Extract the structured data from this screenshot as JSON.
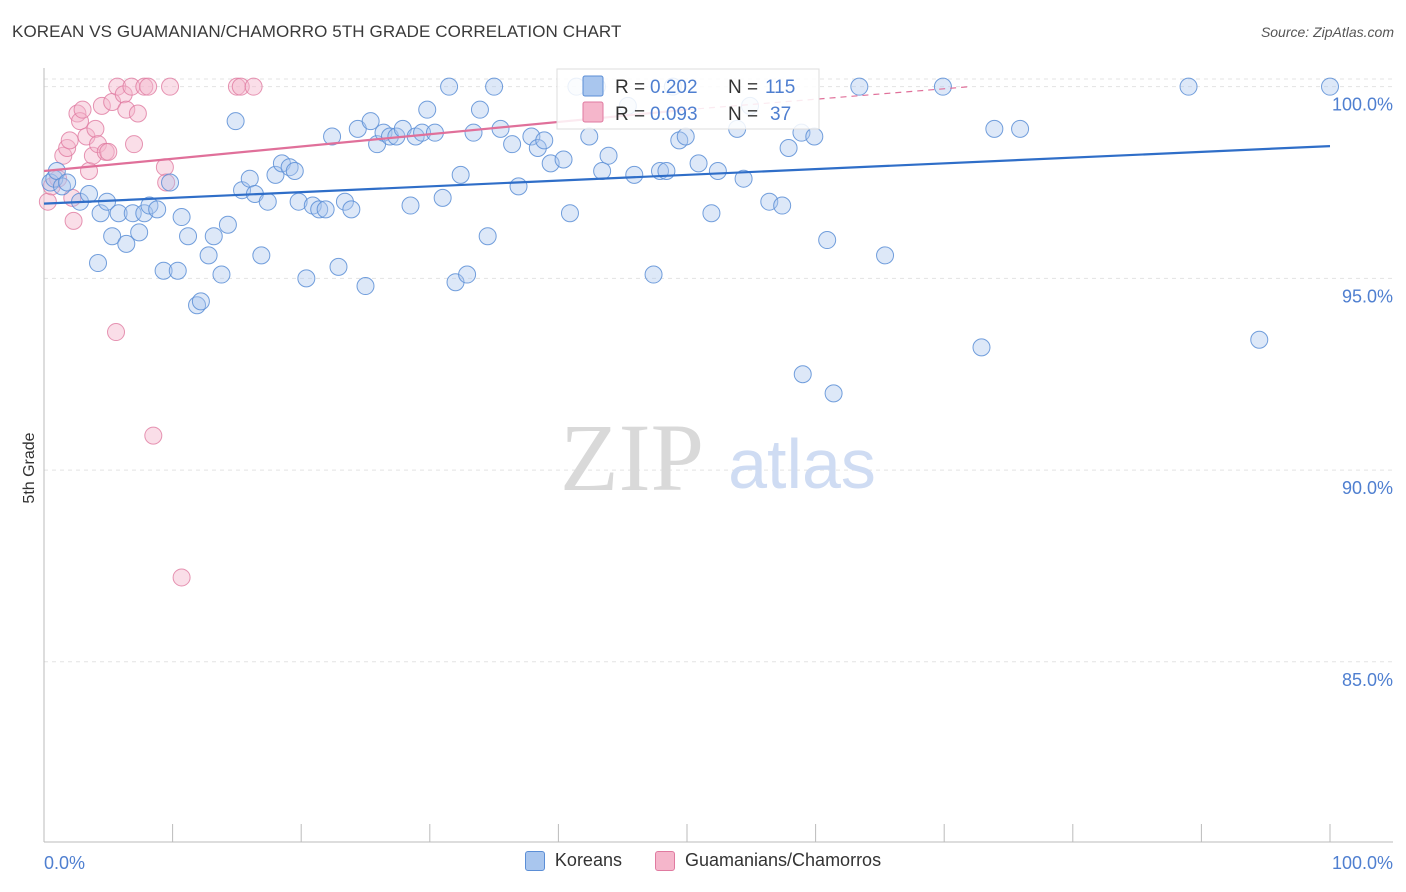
{
  "title": "KOREAN VS GUAMANIAN/CHAMORRO 5TH GRADE CORRELATION CHART",
  "source": "Source: ZipAtlas.com",
  "watermark": {
    "zip": "ZIP",
    "atlas": "atlas"
  },
  "colors": {
    "blue_fill": "#a9c6ee",
    "blue_stroke": "#5b8ed6",
    "blue_line": "#2f6ec8",
    "pink_fill": "#f5b6cb",
    "pink_stroke": "#e07aa0",
    "pink_line": "#e0709a",
    "axis_text": "#4f7fd0",
    "grid": "#e3e3e3"
  },
  "stats": [
    {
      "r_label": "R =",
      "r_value": "0.202",
      "n_label": "N =",
      "n_value": "115",
      "series": "blue"
    },
    {
      "r_label": "R =",
      "r_value": "0.093",
      "n_label": "N =",
      "n_value": "37",
      "series": "pink"
    }
  ],
  "chart_data": {
    "type": "scatter",
    "title": "KOREAN VS GUAMANIAN/CHAMORRO 5TH GRADE CORRELATION CHART",
    "xlabel": "",
    "ylabel": "5th Grade",
    "xlim": [
      0,
      100
    ],
    "ylim": [
      80.3,
      100.8
    ],
    "x_ticks": [
      "0.0%",
      "100.0%"
    ],
    "y_ticks": [
      {
        "value": 100,
        "label": "100.0%"
      },
      {
        "value": 95,
        "label": "95.0%"
      },
      {
        "value": 90,
        "label": "90.0%"
      },
      {
        "value": 85,
        "label": "85.0%"
      }
    ],
    "grid": true,
    "legend_position": "bottom",
    "series": [
      {
        "name": "Koreans",
        "color": "blue",
        "r": 0.202,
        "n": 115,
        "trend": {
          "x0": 0,
          "y0": 96.95,
          "x1": 100,
          "y1": 98.45
        },
        "points": [
          [
            0.5,
            97.5
          ],
          [
            0.8,
            97.6
          ],
          [
            1.0,
            97.8
          ],
          [
            1.4,
            97.4
          ],
          [
            1.8,
            97.5
          ],
          [
            2.8,
            97.0
          ],
          [
            3.5,
            97.2
          ],
          [
            4.2,
            95.4
          ],
          [
            4.4,
            96.7
          ],
          [
            4.9,
            97.0
          ],
          [
            5.3,
            96.1
          ],
          [
            5.8,
            96.7
          ],
          [
            6.4,
            95.9
          ],
          [
            6.9,
            96.7
          ],
          [
            7.4,
            96.2
          ],
          [
            7.8,
            96.7
          ],
          [
            8.2,
            96.9
          ],
          [
            8.8,
            96.8
          ],
          [
            9.3,
            95.2
          ],
          [
            9.8,
            97.5
          ],
          [
            10.4,
            95.2
          ],
          [
            10.7,
            96.6
          ],
          [
            11.2,
            96.1
          ],
          [
            11.9,
            94.3
          ],
          [
            12.2,
            94.4
          ],
          [
            12.8,
            95.6
          ],
          [
            13.2,
            96.1
          ],
          [
            13.8,
            95.1
          ],
          [
            14.3,
            96.4
          ],
          [
            14.9,
            99.1
          ],
          [
            15.4,
            97.3
          ],
          [
            16.0,
            97.6
          ],
          [
            16.4,
            97.2
          ],
          [
            16.9,
            95.6
          ],
          [
            17.4,
            97.0
          ],
          [
            18.0,
            97.7
          ],
          [
            18.5,
            98.0
          ],
          [
            19.1,
            97.9
          ],
          [
            19.5,
            97.8
          ],
          [
            19.8,
            97.0
          ],
          [
            20.4,
            95.0
          ],
          [
            20.9,
            96.9
          ],
          [
            21.4,
            96.8
          ],
          [
            21.9,
            96.8
          ],
          [
            22.4,
            98.7
          ],
          [
            22.9,
            95.3
          ],
          [
            23.4,
            97.0
          ],
          [
            23.9,
            96.8
          ],
          [
            24.4,
            98.9
          ],
          [
            25.0,
            94.8
          ],
          [
            25.4,
            99.1
          ],
          [
            25.9,
            98.5
          ],
          [
            26.4,
            98.8
          ],
          [
            26.9,
            98.7
          ],
          [
            27.4,
            98.7
          ],
          [
            27.9,
            98.9
          ],
          [
            28.5,
            96.9
          ],
          [
            28.9,
            98.7
          ],
          [
            29.4,
            98.8
          ],
          [
            29.8,
            99.4
          ],
          [
            30.4,
            98.8
          ],
          [
            31.0,
            97.1
          ],
          [
            31.5,
            100.0
          ],
          [
            32.0,
            94.9
          ],
          [
            32.4,
            97.7
          ],
          [
            32.9,
            95.1
          ],
          [
            33.4,
            98.8
          ],
          [
            33.9,
            99.4
          ],
          [
            34.5,
            96.1
          ],
          [
            35.0,
            100.0
          ],
          [
            35.5,
            98.9
          ],
          [
            36.4,
            98.5
          ],
          [
            36.9,
            97.4
          ],
          [
            37.9,
            98.7
          ],
          [
            38.4,
            98.4
          ],
          [
            38.9,
            98.6
          ],
          [
            39.4,
            98.0
          ],
          [
            40.4,
            98.1
          ],
          [
            40.9,
            96.7
          ],
          [
            41.4,
            100.0
          ],
          [
            42.4,
            98.7
          ],
          [
            43.4,
            97.8
          ],
          [
            43.9,
            98.2
          ],
          [
            45.4,
            99.5
          ],
          [
            45.9,
            97.7
          ],
          [
            47.4,
            95.1
          ],
          [
            47.9,
            97.8
          ],
          [
            48.4,
            97.8
          ],
          [
            48.9,
            100.0
          ],
          [
            49.4,
            98.6
          ],
          [
            49.9,
            98.7
          ],
          [
            50.9,
            98.0
          ],
          [
            51.9,
            96.7
          ],
          [
            52.4,
            97.8
          ],
          [
            53.9,
            98.9
          ],
          [
            54.4,
            97.6
          ],
          [
            54.9,
            99.5
          ],
          [
            56.4,
            97.0
          ],
          [
            57.4,
            96.9
          ],
          [
            57.9,
            98.4
          ],
          [
            58.9,
            98.8
          ],
          [
            59.9,
            98.7
          ],
          [
            60.9,
            96.0
          ],
          [
            61.4,
            92.0
          ],
          [
            63.4,
            100.0
          ],
          [
            65.4,
            95.6
          ],
          [
            69.9,
            100.0
          ],
          [
            72.9,
            93.2
          ],
          [
            73.9,
            98.9
          ],
          [
            75.9,
            98.9
          ],
          [
            59.0,
            92.5
          ],
          [
            89.0,
            100.0
          ],
          [
            94.5,
            93.4
          ],
          [
            100.0,
            100.0
          ],
          [
            43.0,
            100.0
          ]
        ]
      },
      {
        "name": "Guamanians/Chamorros",
        "color": "pink",
        "r": 0.093,
        "n": 37,
        "trend": {
          "x0": 0,
          "y0": 97.8,
          "x1": 50,
          "y1": 99.4
        },
        "trend_dashed": {
          "x0": 50,
          "y0": 99.4,
          "x1": 72,
          "y1": 100.0
        },
        "points": [
          [
            0.3,
            97.0
          ],
          [
            0.6,
            97.4
          ],
          [
            1.1,
            97.6
          ],
          [
            1.5,
            98.2
          ],
          [
            1.8,
            98.4
          ],
          [
            2.0,
            98.6
          ],
          [
            2.2,
            97.1
          ],
          [
            2.3,
            96.5
          ],
          [
            2.6,
            99.3
          ],
          [
            2.8,
            99.1
          ],
          [
            3.0,
            99.4
          ],
          [
            3.3,
            98.7
          ],
          [
            3.5,
            97.8
          ],
          [
            3.8,
            98.2
          ],
          [
            4.0,
            98.9
          ],
          [
            4.2,
            98.5
          ],
          [
            4.5,
            99.5
          ],
          [
            4.8,
            98.3
          ],
          [
            5.0,
            98.3
          ],
          [
            5.3,
            99.6
          ],
          [
            5.6,
            93.6
          ],
          [
            5.7,
            100.0
          ],
          [
            6.2,
            99.8
          ],
          [
            6.4,
            99.4
          ],
          [
            6.8,
            100.0
          ],
          [
            7.0,
            98.5
          ],
          [
            7.3,
            99.3
          ],
          [
            7.8,
            100.0
          ],
          [
            8.1,
            100.0
          ],
          [
            8.5,
            90.9
          ],
          [
            9.4,
            97.9
          ],
          [
            9.5,
            97.5
          ],
          [
            9.8,
            100.0
          ],
          [
            10.7,
            87.2
          ],
          [
            15.0,
            100.0
          ],
          [
            15.3,
            100.0
          ],
          [
            16.3,
            100.0
          ]
        ]
      }
    ]
  },
  "legend": [
    {
      "label": "Koreans",
      "color": "blue"
    },
    {
      "label": "Guamanians/Chamorros",
      "color": "pink"
    }
  ]
}
